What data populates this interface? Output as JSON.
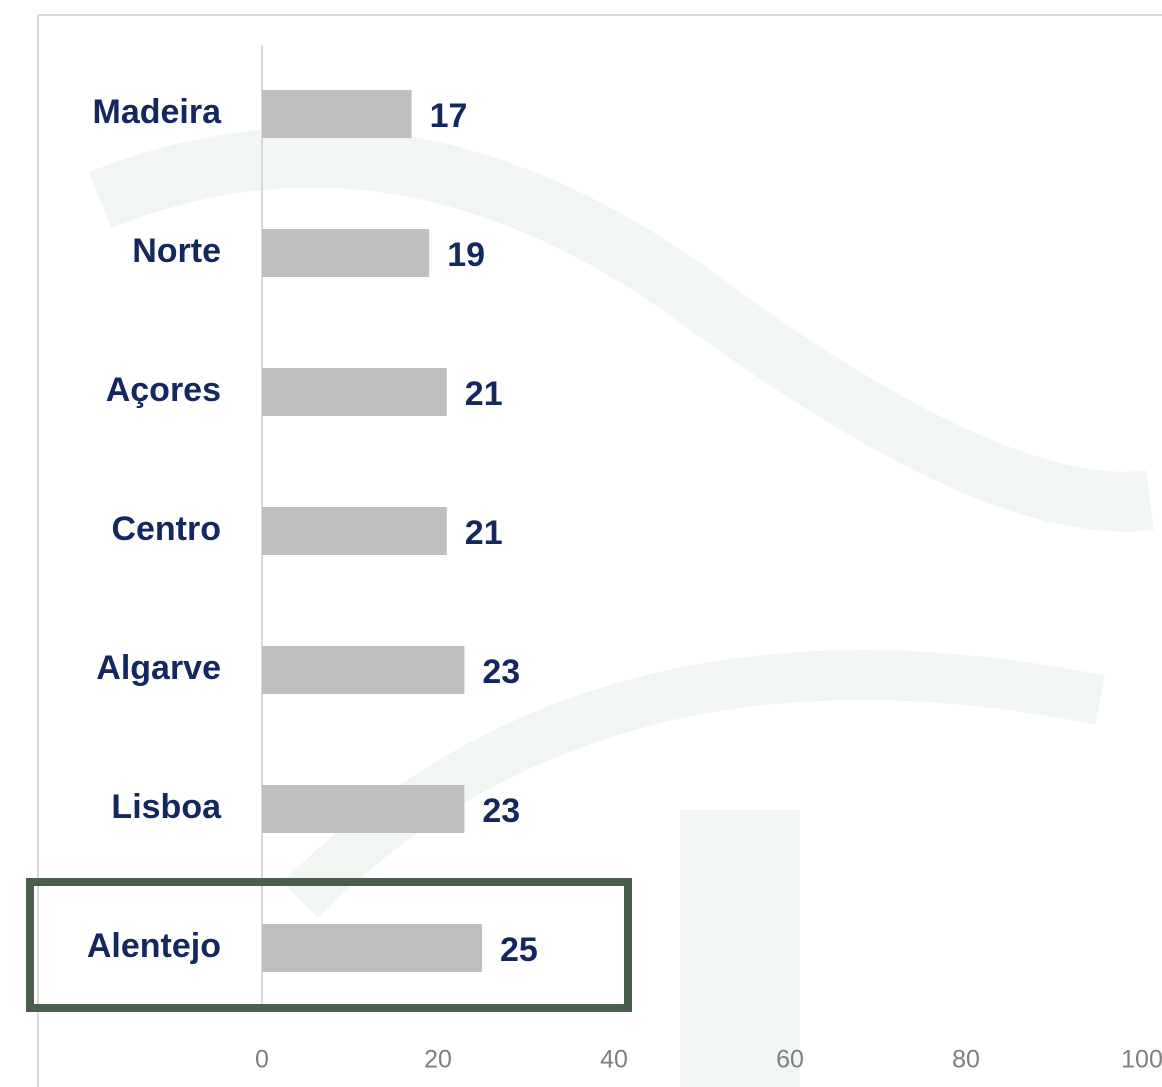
{
  "chart_data": {
    "type": "bar",
    "orientation": "horizontal",
    "categories": [
      "Madeira",
      "Norte",
      "Açores",
      "Centro",
      "Algarve",
      "Lisboa",
      "Alentejo"
    ],
    "values": [
      17,
      19,
      21,
      21,
      23,
      23,
      25
    ],
    "color": "#bfbfbf",
    "xlim": [
      0,
      100
    ],
    "xticks": [
      0,
      20,
      40,
      60,
      80,
      100
    ]
  }
}
